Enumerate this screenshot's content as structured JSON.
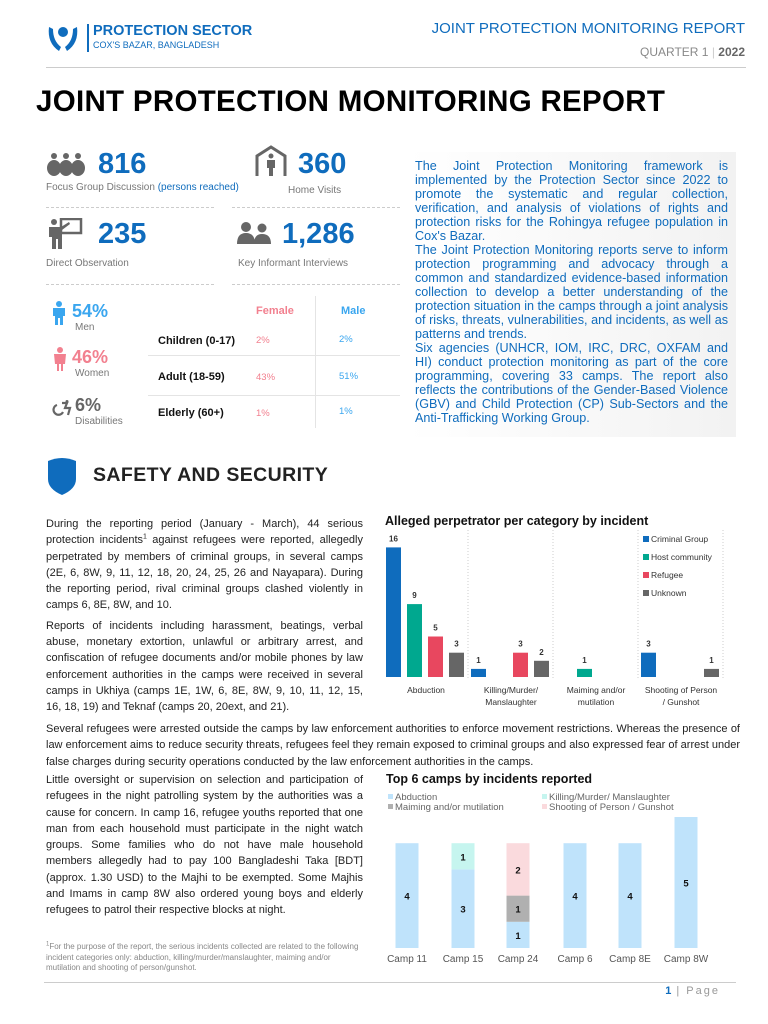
{
  "header": {
    "org": "PROTECTION SECTOR",
    "location": "COX'S BAZAR, BANGLADESH",
    "report": "JOINT PROTECTION MONITORING REPORT",
    "quarter": "QUARTER 1",
    "sep": "|",
    "year": "2022",
    "logo_icon": "hands-holding-person-icon"
  },
  "title": "JOINT PROTECTION MONITORING REPORT",
  "stats": [
    {
      "value": "816",
      "label": "Focus Group Discussion",
      "note": "(persons reached)",
      "icon": "group-icon"
    },
    {
      "value": "360",
      "label": "Home Visits",
      "icon": "house-person-icon"
    },
    {
      "value": "235",
      "label": "Direct Observation",
      "icon": "presenter-board-icon"
    },
    {
      "value": "1,286",
      "label": "Key Informant Interviews",
      "icon": "two-people-icon"
    }
  ],
  "demographics": {
    "men": {
      "value": "54%",
      "label": "Men"
    },
    "women": {
      "value": "46%",
      "label": "Women"
    },
    "disabilities": {
      "value": "6%",
      "label": "Disabilities"
    },
    "table": {
      "headers": [
        "Female",
        "Male"
      ],
      "rows": [
        {
          "label": "Children (0-17)",
          "female": "2%",
          "male": "2%"
        },
        {
          "label": "Adult (18-59)",
          "female": "43%",
          "male": "51%"
        },
        {
          "label": "Elderly (60+)",
          "female": "1%",
          "male": "1%"
        }
      ]
    }
  },
  "intro": [
    "The Joint Protection Monitoring framework is implemented by the Protection Sector since 2022 to promote the systematic and regular collection, verification, and analysis of violations of rights and protection risks for the Rohingya refugee population in Cox's Bazar.",
    "The Joint Protection Monitoring reports serve to inform protection programming and advocacy through a common and standardized evidence-based information collection to develop a better understanding of the protection situation in the camps through a joint analysis of risks, threats, vulnerabilities, and incidents, as well as patterns and trends.",
    "Six agencies (UNHCR, IOM, IRC, DRC, OXFAM and HI) conduct protection monitoring as part of the core programming, covering 33 camps. The report also reflects the contributions of the Gender-Based Violence (GBV) and Child Protection (CP) Sub-Sectors and the Anti-Trafficking Working Group."
  ],
  "section": {
    "title": "SAFETY AND SECURITY",
    "icon": "shield-icon"
  },
  "body": {
    "p1a": "During the reporting period (January - March), 44 serious protection incidents",
    "p1sup": "1",
    "p1b": " against refugees were reported, allegedly perpetrated by members of criminal groups, in several camps (2E, 6, 8W, 9, 11, 12, 18, 20, 24, 25, 26 and Nayapara). During the reporting period, rival criminal groups clashed violently in camps 6, 8E, 8W, and 10.",
    "p2": "Reports of incidents including harassment, beatings, verbal abuse, monetary extortion, unlawful or arbitrary arrest, and confiscation of refugee documents and/or mobile phones by law enforcement authorities in the camps were received in several camps in Ukhiya (camps 1E, 1W, 6, 8E, 8W, 9, 10, 11, 12, 15, 16, 18, 19) and Teknaf (camps 20, 20ext, and 21).",
    "p3": "Several refugees were arrested outside the camps by law enforcement authorities to enforce movement restrictions. Whereas the presence of law enforcement aims to reduce security threats, refugees feel they remain exposed to criminal groups and also expressed fear of arrest under false charges during security operations conducted by the law enforcement authorities in the camps.",
    "p4": "Little oversight or supervision on selection and participation of refugees in the night patrolling system by the authorities was a cause for concern. In camp 16, refugee youths reported that one man from each household must participate in the night watch groups. Some families who do not have male household members allegedly had to pay 100 Bangladeshi Taka [BDT] (approx. 1.30 USD) to the Majhi to be exempted. Some Majhis and Imams in camp 8W also ordered young boys and elderly refugees to patrol their respective blocks at night."
  },
  "footnote": {
    "sup": "1",
    "text": "For the purpose of the report, the serious incidents collected are related to the following incident categories only: abduction, killing/murder/manslaughter, maiming and/or mutilation and shooting of person/gunshot."
  },
  "page": {
    "number": "1",
    "sep": "|",
    "label": "Page"
  },
  "chart_data": [
    {
      "type": "bar",
      "title": "Alleged perpetrator per category by incident",
      "categories": [
        [
          "Abduction"
        ],
        [
          "Killing/Murder/",
          "Manslaughter"
        ],
        [
          "Maiming and/or",
          "mutilation"
        ],
        [
          "Shooting of Person",
          "/ Gunshot"
        ]
      ],
      "series": [
        {
          "name": "Criminal Group",
          "color": "#0f6cbd",
          "values": [
            16,
            1,
            0,
            3
          ]
        },
        {
          "name": "Host community",
          "color": "#00a88f",
          "values": [
            9,
            0,
            1,
            0
          ]
        },
        {
          "name": "Refugee",
          "color": "#e8475f",
          "values": [
            5,
            3,
            0,
            0
          ]
        },
        {
          "name": "Unknown",
          "color": "#666666",
          "values": [
            3,
            2,
            0,
            1
          ]
        }
      ],
      "legend": "top-right",
      "data_labels": true,
      "grid": false
    },
    {
      "type": "bar",
      "stacked": true,
      "title": "Top 6 camps by incidents reported",
      "categories": [
        "Camp 11",
        "Camp 15",
        "Camp 24",
        "Camp 6",
        "Camp 8E",
        "Camp 8W"
      ],
      "series": [
        {
          "name": "Abduction",
          "color": "#bfe3fb",
          "values": [
            4,
            3,
            1,
            4,
            4,
            5
          ]
        },
        {
          "name": "Killing/Murder/ Manslaughter",
          "color": "#c6f5ef",
          "values": [
            0,
            1,
            0,
            0,
            0,
            0
          ]
        },
        {
          "name": "Maiming and/or mutilation",
          "color": "#b0b0b0",
          "values": [
            0,
            0,
            1,
            0,
            0,
            0
          ]
        },
        {
          "name": "Shooting of Person / Gunshot",
          "color": "#fadadd",
          "values": [
            0,
            0,
            2,
            0,
            0,
            0
          ]
        }
      ],
      "legend": "top",
      "data_labels": true,
      "grid": false
    }
  ]
}
